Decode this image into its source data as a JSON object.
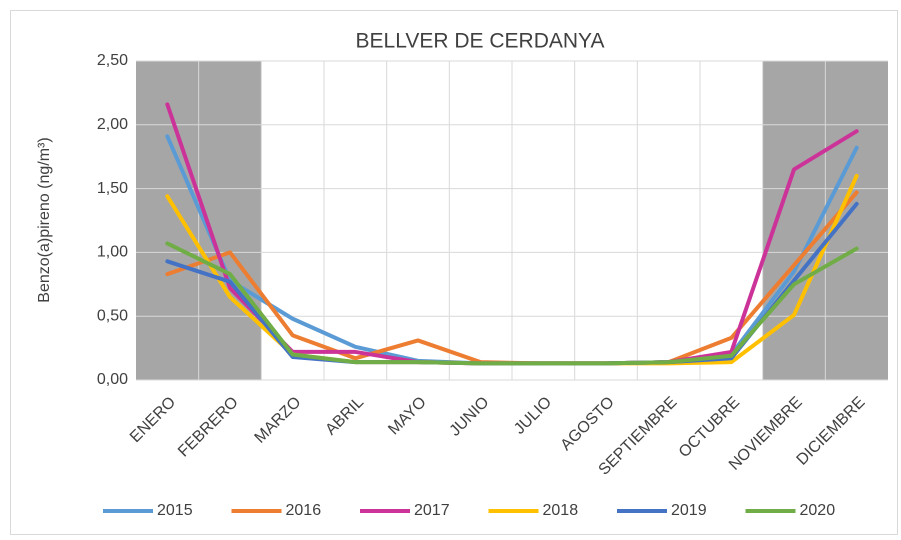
{
  "chart_data": {
    "type": "line",
    "title": "BELLVER DE CERDANYA",
    "y_label": "Benzo(a)pireno (ng/m³)",
    "categories": [
      "ENERO",
      "FEBRERO",
      "MARZO",
      "ABRIL",
      "MAYO",
      "JUNIO",
      "JULIO",
      "AGOSTO",
      "SEPTIEMBRE",
      "OCTUBRE",
      "NOVIEMBRE",
      "DICIEMBRE"
    ],
    "series": [
      {
        "name": "2015",
        "color": "#5b9bd5",
        "values": [
          1.91,
          0.78,
          0.48,
          0.26,
          0.15,
          0.13,
          0.13,
          0.13,
          0.14,
          0.2,
          0.85,
          1.82
        ]
      },
      {
        "name": "2016",
        "color": "#ed7d31",
        "values": [
          0.83,
          1.0,
          0.35,
          0.17,
          0.31,
          0.14,
          0.13,
          0.13,
          0.14,
          0.33,
          0.9,
          1.47
        ]
      },
      {
        "name": "2017",
        "color": "#cc3399",
        "values": [
          2.16,
          0.72,
          0.22,
          0.22,
          0.14,
          0.13,
          0.13,
          0.13,
          0.14,
          0.22,
          1.65,
          1.95
        ]
      },
      {
        "name": "2018",
        "color": "#ffc000",
        "values": [
          1.44,
          0.65,
          0.2,
          0.14,
          0.14,
          0.13,
          0.13,
          0.13,
          0.13,
          0.14,
          0.51,
          1.6
        ]
      },
      {
        "name": "2019",
        "color": "#4472c4",
        "values": [
          0.93,
          0.77,
          0.18,
          0.14,
          0.14,
          0.13,
          0.13,
          0.13,
          0.14,
          0.17,
          0.78,
          1.38
        ]
      },
      {
        "name": "2020",
        "color": "#70ad47",
        "values": [
          1.07,
          0.83,
          0.2,
          0.14,
          0.14,
          0.13,
          0.13,
          0.13,
          0.14,
          0.19,
          0.75,
          1.03
        ]
      }
    ],
    "ylim": [
      0,
      2.5
    ],
    "yticks": [
      {
        "value": 0,
        "label": "0,00"
      },
      {
        "value": 0.5,
        "label": "0,50"
      },
      {
        "value": 1,
        "label": "1,00"
      },
      {
        "value": 1.5,
        "label": "1,50"
      },
      {
        "value": 2,
        "label": "2,00"
      },
      {
        "value": 2.5,
        "label": "2,50"
      }
    ],
    "grid": true,
    "legend": "bottom"
  }
}
